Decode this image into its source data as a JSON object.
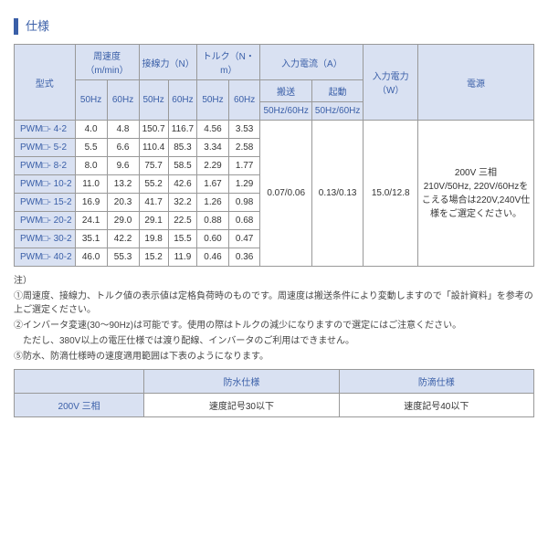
{
  "title": "仕様",
  "headers": {
    "model": "型式",
    "peripheral_speed": "周速度（m/min）",
    "linear_force": "接線力（N）",
    "torque": "トルク（N・m）",
    "input_current": "入力電流（A）",
    "input_power": "入力電力（W）",
    "power_source": "電源",
    "hz50": "50Hz",
    "hz60": "60Hz",
    "transport": "搬送",
    "startup": "起動",
    "hz5060": "50Hz/60Hz"
  },
  "rows": [
    {
      "model": "PWM□- 4-2",
      "s50": "4.0",
      "s60": "4.8",
      "f50": "150.7",
      "f60": "116.7",
      "t50": "4.56",
      "t60": "3.53"
    },
    {
      "model": "PWM□- 5-2",
      "s50": "5.5",
      "s60": "6.6",
      "f50": "110.4",
      "f60": "85.3",
      "t50": "3.34",
      "t60": "2.58"
    },
    {
      "model": "PWM□- 8-2",
      "s50": "8.0",
      "s60": "9.6",
      "f50": "75.7",
      "f60": "58.5",
      "t50": "2.29",
      "t60": "1.77"
    },
    {
      "model": "PWM□- 10-2",
      "s50": "11.0",
      "s60": "13.2",
      "f50": "55.2",
      "f60": "42.6",
      "t50": "1.67",
      "t60": "1.29"
    },
    {
      "model": "PWM□- 15-2",
      "s50": "16.9",
      "s60": "20.3",
      "f50": "41.7",
      "f60": "32.2",
      "t50": "1.26",
      "t60": "0.98"
    },
    {
      "model": "PWM□- 20-2",
      "s50": "24.1",
      "s60": "29.0",
      "f50": "29.1",
      "f60": "22.5",
      "t50": "0.88",
      "t60": "0.68"
    },
    {
      "model": "PWM□- 30-2",
      "s50": "35.1",
      "s60": "42.2",
      "f50": "19.8",
      "f60": "15.5",
      "t50": "0.60",
      "t60": "0.47"
    },
    {
      "model": "PWM□- 40-2",
      "s50": "46.0",
      "s60": "55.3",
      "f50": "15.2",
      "f60": "11.9",
      "t50": "0.46",
      "t60": "0.36"
    }
  ],
  "shared": {
    "transport": "0.07/0.06",
    "startup": "0.13/0.13",
    "power": "15.0/12.8",
    "source": "200V 三相\n210V/50Hz, 220V/60Hzをこえる場合は220V,240V仕様をご選定ください。"
  },
  "notes": {
    "header": "注）",
    "n1": "①周速度、接線力、トルク値の表示値は定格負荷時のものです。周速度は搬送条件により変動しますので「設計資料」を参考の上ご選定ください。",
    "n2": "②インバータ変速(30〜90Hz)は可能です。使用の際はトルクの減少になりますので選定にはご注意ください。",
    "n2b": "　ただし、380V以上の電圧仕様では渡り配線、インバータのご利用はできません。",
    "n5": "⑤防水、防滴仕様時の速度適用範囲は下表のようになります。"
  },
  "table2": {
    "h1": "防水仕様",
    "h2": "防滴仕様",
    "rowlabel": "200V 三相",
    "c1": "速度記号30以下",
    "c2": "速度記号40以下"
  }
}
